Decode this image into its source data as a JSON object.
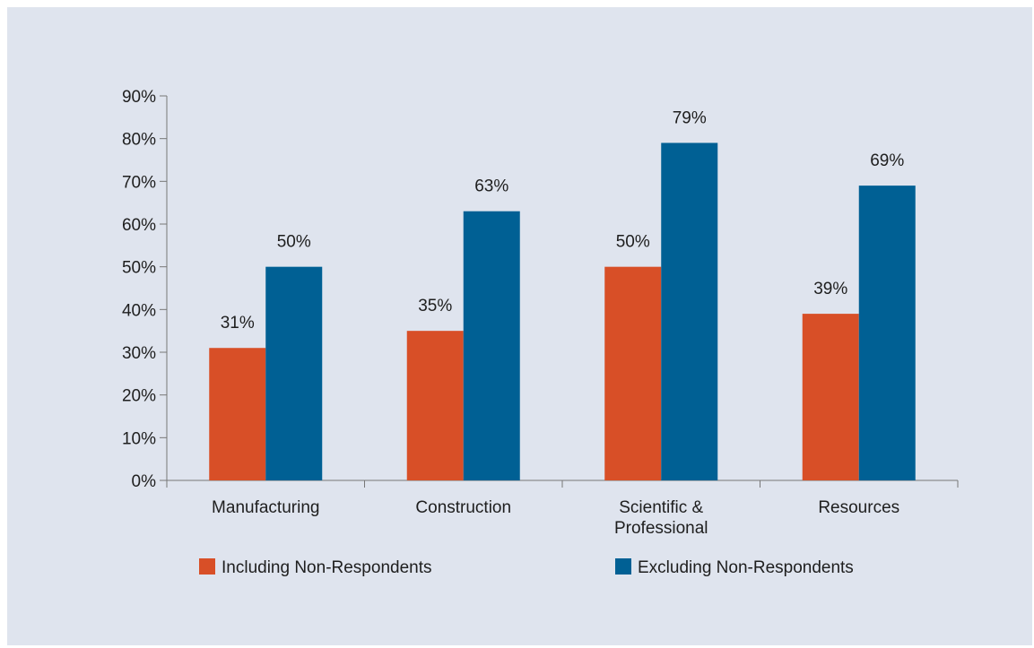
{
  "chart_data": {
    "type": "bar",
    "categories": [
      "Manufacturing",
      "Construction",
      "Scientific & Professional",
      "Resources"
    ],
    "category_label_lines": [
      [
        "Manufacturing"
      ],
      [
        "Construction"
      ],
      [
        "Scientific &",
        "Professional"
      ],
      [
        "Resources"
      ]
    ],
    "series": [
      {
        "name": "Including Non-Respondents",
        "color": "#d84f27",
        "values": [
          31,
          35,
          50,
          39
        ]
      },
      {
        "name": "Excluding Non-Respondents",
        "color": "#006094",
        "values": [
          50,
          63,
          79,
          69
        ]
      }
    ],
    "value_format": "percent",
    "ylim": [
      0,
      90
    ],
    "yticks": [
      0,
      10,
      20,
      30,
      40,
      50,
      60,
      70,
      80,
      90
    ],
    "ytick_labels": [
      "0%",
      "10%",
      "20%",
      "30%",
      "40%",
      "50%",
      "60%",
      "70%",
      "80%",
      "90%"
    ],
    "title": "",
    "xlabel": "",
    "ylabel": "",
    "grid": false,
    "legend_position": "bottom",
    "background_color": "#dfe4ee"
  }
}
